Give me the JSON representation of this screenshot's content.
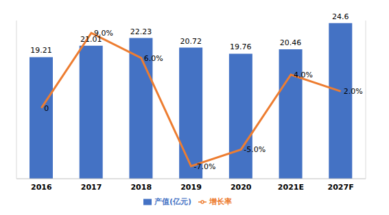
{
  "chart_data": {
    "type": "bar",
    "categories": [
      "2016",
      "2017",
      "2018",
      "2019",
      "2020",
      "2021E",
      "2027F"
    ],
    "series": [
      {
        "name": "产值(亿元)",
        "type": "bar",
        "color": "#4472c4",
        "values": [
          19.21,
          21.01,
          22.23,
          20.72,
          19.76,
          20.46,
          24.6
        ]
      },
      {
        "name": "增长率",
        "type": "line",
        "color": "#ed7d31",
        "axis": "y2",
        "values": [
          0,
          9,
          6,
          -7,
          -5,
          4,
          2
        ],
        "value_labels": [
          "0",
          "9.0%",
          "6.0%",
          "-7.0%",
          "-5.0%",
          "4.0%",
          "2.0%"
        ]
      }
    ],
    "ylim": [
      0,
      25
    ],
    "y2lim": [
      -8.5,
      10.5
    ],
    "legend": "bottom",
    "tick_labels": "x",
    "data_labels": true,
    "grid": false
  }
}
